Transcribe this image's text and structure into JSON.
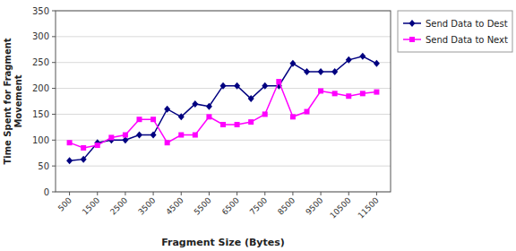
{
  "chart_data": {
    "type": "line",
    "xlabel": "Fragment Size (Bytes)",
    "ylabel": "Time Spent for Fragment\nMovement",
    "x": [
      500,
      1000,
      1500,
      2000,
      2500,
      3000,
      3500,
      4000,
      4500,
      5000,
      5500,
      6000,
      6500,
      7000,
      7500,
      8000,
      8500,
      9000,
      9500,
      10000,
      10500,
      11000,
      11500
    ],
    "series": [
      {
        "name": "Send Data to Dest",
        "color": "#000080",
        "marker": "diamond",
        "values": [
          60,
          63,
          95,
          100,
          100,
          110,
          110,
          160,
          145,
          170,
          165,
          205,
          205,
          180,
          205,
          205,
          248,
          232,
          232,
          232,
          255,
          262,
          248
        ]
      },
      {
        "name": "Send Data to Next",
        "color": "#FF00FF",
        "marker": "square",
        "values": [
          95,
          85,
          90,
          105,
          110,
          140,
          140,
          95,
          110,
          110,
          145,
          130,
          130,
          135,
          150,
          213,
          145,
          155,
          195,
          190,
          185,
          190,
          193
        ]
      }
    ],
    "xlim": [
      0,
      12000
    ],
    "xticks": [
      500,
      1500,
      2500,
      3500,
      4500,
      5500,
      6500,
      7500,
      8500,
      9500,
      10500,
      11500
    ],
    "ylim": [
      0,
      350
    ],
    "yticks": [
      0,
      50,
      100,
      150,
      200,
      250,
      300,
      350
    ],
    "grid": "y",
    "legend": "right"
  }
}
